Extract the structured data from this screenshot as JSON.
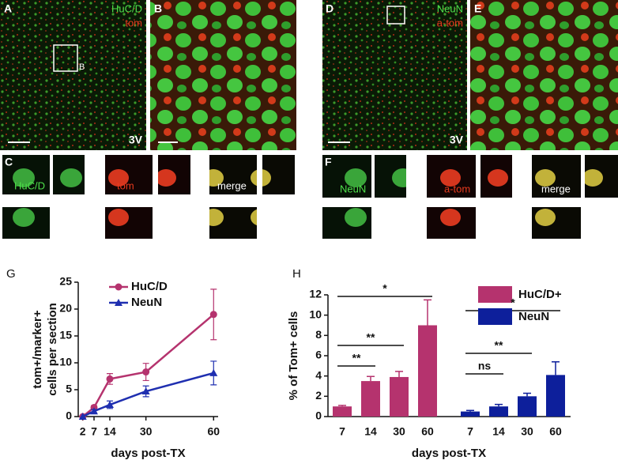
{
  "panels": [
    {
      "label": "A",
      "texts": [
        "HuC/D",
        "tom",
        "B",
        "3V"
      ]
    },
    {
      "label": "B",
      "texts": []
    },
    {
      "label": "D",
      "texts": [
        "NeuN",
        "a-tom",
        "3V"
      ]
    },
    {
      "label": "E",
      "texts": []
    },
    {
      "label": "C",
      "texts": [
        "HuC/D",
        "tom",
        "merge"
      ]
    },
    {
      "label": "F",
      "texts": [
        "NeuN",
        "a-tom",
        "merge"
      ]
    }
  ],
  "chart_data": [
    {
      "type": "line",
      "label": "G",
      "ylabel": [
        "tom+/marker+",
        "cells per section"
      ],
      "xlabel": "days post-TX",
      "x": [
        2,
        7,
        14,
        30,
        60
      ],
      "xlim": [
        0,
        62
      ],
      "xticks": [
        2,
        7,
        14,
        30,
        60
      ],
      "ylim": [
        0,
        25
      ],
      "yticks": [
        0,
        5,
        10,
        15,
        20,
        25
      ],
      "legend": "upper left",
      "series": [
        {
          "name": "HuC/D",
          "color": "#b5336e",
          "marker": "circle",
          "values": [
            0,
            1.7,
            7.0,
            8.3,
            19.0
          ],
          "errors": [
            0,
            0.3,
            1.0,
            1.6,
            4.7
          ]
        },
        {
          "name": "NeuN",
          "color": "#1f2fb0",
          "marker": "triangle",
          "values": [
            0,
            1.0,
            2.2,
            4.7,
            8.1
          ],
          "errors": [
            0,
            0.3,
            0.7,
            1.0,
            2.2
          ]
        }
      ]
    },
    {
      "type": "grouped-bar",
      "label": "H",
      "ylabel": "% of Tom+ cells",
      "xlabel": "days post-TX",
      "categories": [
        "7",
        "14",
        "30",
        "60"
      ],
      "ylim": [
        0,
        12
      ],
      "yticks": [
        0,
        2,
        4,
        6,
        8,
        10,
        12
      ],
      "legend": "upper right",
      "series": [
        {
          "name": "HuC/D+",
          "color": "#b5336e",
          "values": [
            1.0,
            3.5,
            3.9,
            9.0
          ],
          "errors": [
            0.1,
            0.45,
            0.55,
            2.5
          ],
          "significance": [
            "**",
            "**",
            "*"
          ]
        },
        {
          "name": "NeuN",
          "color": "#0d1f9b",
          "values": [
            0.5,
            1.0,
            2.0,
            4.1
          ],
          "errors": [
            0.1,
            0.2,
            0.3,
            1.3
          ],
          "significance": [
            "ns",
            "**",
            "*"
          ]
        }
      ]
    }
  ]
}
